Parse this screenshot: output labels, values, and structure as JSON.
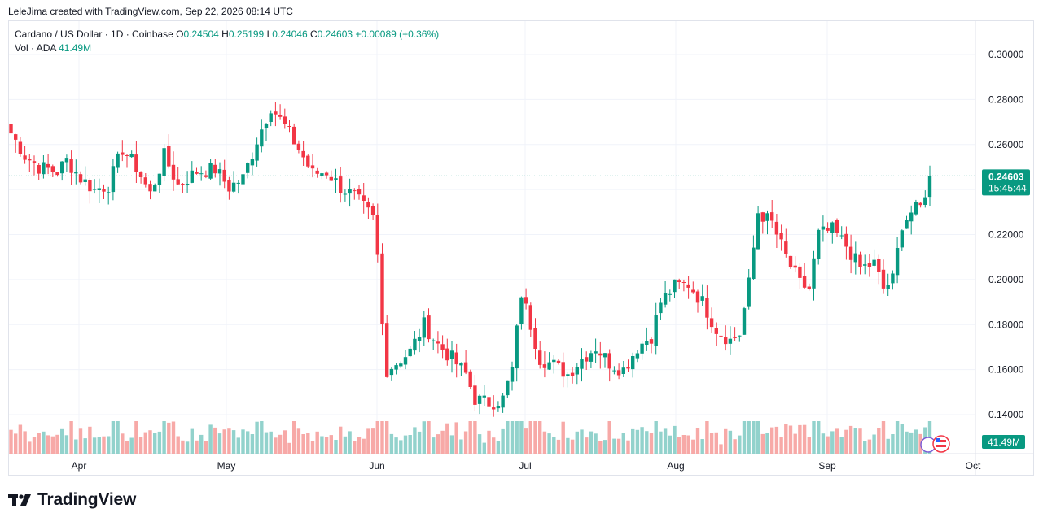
{
  "header": {
    "credit": "LeleJima created with TradingView.com, Sep 22, 2026 08:14 UTC"
  },
  "legend": {
    "symbol": "Cardano / US Dollar · 1D · Coinbase",
    "open_label": "O",
    "open": "0.24504",
    "high_label": "H",
    "high": "0.25199",
    "low_label": "L",
    "low": "0.24046",
    "close_label": "C",
    "close": "0.24603",
    "change": "+0.00089 (+0.36%)",
    "vol_label": "Vol · ADA",
    "vol_value": "41.49M"
  },
  "price_badge": {
    "price": "0.24603",
    "countdown": "15:45:44"
  },
  "volume_badge": {
    "value": "41.49M"
  },
  "brand": {
    "name": "TradingView"
  },
  "colors": {
    "up": "#089981",
    "down": "#f23645",
    "up_vol": "#92d2cc",
    "down_vol": "#f7a9a7",
    "grid": "#f0f3fa"
  },
  "chart_data": {
    "type": "candlestick",
    "ylim": [
      0.125,
      0.31
    ],
    "y_ticks": [
      "0.14000",
      "0.16000",
      "0.18000",
      "0.20000",
      "0.22000",
      "0.24000",
      "0.26000",
      "0.28000",
      "0.30000"
    ],
    "x_ticks": [
      "Apr",
      "May",
      "Jun",
      "Jul",
      "Aug",
      "Sep",
      "Oct"
    ],
    "last_price": 0.24603,
    "waypoints": [
      [
        0,
        0.265
      ],
      [
        3,
        0.255
      ],
      [
        6,
        0.25
      ],
      [
        10,
        0.248
      ],
      [
        12,
        0.253
      ],
      [
        15,
        0.245
      ],
      [
        18,
        0.24
      ],
      [
        21,
        0.242
      ],
      [
        24,
        0.258
      ],
      [
        27,
        0.25
      ],
      [
        30,
        0.238
      ],
      [
        33,
        0.255
      ],
      [
        36,
        0.242
      ],
      [
        40,
        0.248
      ],
      [
        44,
        0.249
      ],
      [
        47,
        0.241
      ],
      [
        50,
        0.245
      ],
      [
        53,
        0.262
      ],
      [
        56,
        0.277
      ],
      [
        59,
        0.268
      ],
      [
        62,
        0.258
      ],
      [
        65,
        0.247
      ],
      [
        68,
        0.248
      ],
      [
        71,
        0.241
      ],
      [
        74,
        0.237
      ],
      [
        76,
        0.232
      ],
      [
        78,
        0.227
      ],
      [
        79,
        0.21
      ],
      [
        80,
        0.18
      ],
      [
        81,
        0.16
      ],
      [
        83,
        0.163
      ],
      [
        86,
        0.168
      ],
      [
        89,
        0.18
      ],
      [
        92,
        0.171
      ],
      [
        95,
        0.165
      ],
      [
        98,
        0.158
      ],
      [
        100,
        0.147
      ],
      [
        103,
        0.145
      ],
      [
        106,
        0.147
      ],
      [
        108,
        0.16
      ],
      [
        110,
        0.194
      ],
      [
        112,
        0.18
      ],
      [
        114,
        0.165
      ],
      [
        117,
        0.162
      ],
      [
        120,
        0.158
      ],
      [
        123,
        0.165
      ],
      [
        126,
        0.17
      ],
      [
        129,
        0.163
      ],
      [
        132,
        0.16
      ],
      [
        135,
        0.17
      ],
      [
        138,
        0.175
      ],
      [
        140,
        0.19
      ],
      [
        143,
        0.197
      ],
      [
        146,
        0.198
      ],
      [
        149,
        0.19
      ],
      [
        152,
        0.178
      ],
      [
        155,
        0.173
      ],
      [
        157,
        0.176
      ],
      [
        159,
        0.198
      ],
      [
        161,
        0.23
      ],
      [
        164,
        0.225
      ],
      [
        167,
        0.21
      ],
      [
        170,
        0.198
      ],
      [
        172,
        0.196
      ],
      [
        174,
        0.22
      ],
      [
        177,
        0.222
      ],
      [
        180,
        0.215
      ],
      [
        183,
        0.205
      ],
      [
        186,
        0.207
      ],
      [
        188,
        0.196
      ],
      [
        190,
        0.2
      ],
      [
        192,
        0.225
      ],
      [
        194,
        0.23
      ],
      [
        196,
        0.232
      ],
      [
        198,
        0.246
      ]
    ],
    "volume_range": [
      5,
      40
    ]
  }
}
